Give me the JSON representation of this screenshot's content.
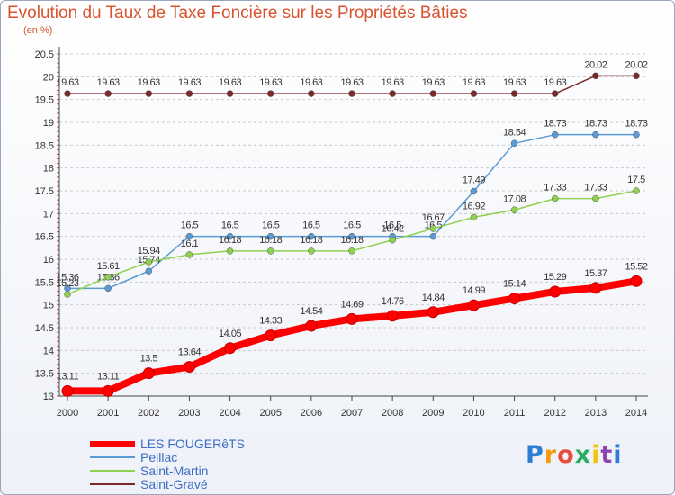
{
  "title": "Evolution du Taux de Taxe Foncière sur les Propriétés Bâties",
  "unit_label": "(en %)",
  "colors": {
    "title": "#d9532f",
    "grid": "#c8c8c8",
    "axis": "#444444",
    "label": "#333333"
  },
  "chart_data": {
    "type": "line",
    "title": "Evolution du Taux de Taxe Foncière sur les Propriétés Bâties",
    "ylabel": "(en %)",
    "xlabel": "",
    "x": [
      "2000",
      "2001",
      "2002",
      "2003",
      "2004",
      "2005",
      "2006",
      "2007",
      "2008",
      "2009",
      "2010",
      "2011",
      "2012",
      "2013",
      "2014"
    ],
    "y_ticks": [
      "13",
      "13.5",
      "14",
      "14.5",
      "15",
      "15.5",
      "16",
      "16.5",
      "17",
      "17.5",
      "18",
      "18.5",
      "19",
      "19.5",
      "20",
      "20.5"
    ],
    "ylim": [
      13,
      20.5
    ],
    "grid": "horizontal",
    "legend_position": "bottom-left",
    "series": [
      {
        "name": "Saint-Gravé",
        "color": "#7b2a2a",
        "values": [
          19.63,
          19.63,
          19.63,
          19.63,
          19.63,
          19.63,
          19.63,
          19.63,
          19.63,
          19.63,
          19.63,
          19.63,
          19.63,
          20.02,
          20.02
        ],
        "labels": [
          "19.63",
          "19.63",
          "19.63",
          "19.63",
          "19.63",
          "19.63",
          "19.63",
          "19.63",
          "19.63",
          "19.63",
          "19.63",
          "19.63",
          "19.63",
          "20.02",
          "20.02"
        ]
      },
      {
        "name": "Peillac",
        "color": "#5a9bd5",
        "values": [
          15.36,
          15.36,
          15.74,
          16.5,
          16.5,
          16.5,
          16.5,
          16.5,
          16.5,
          16.5,
          17.49,
          18.54,
          18.73,
          18.73,
          18.73
        ],
        "labels": [
          "15.36",
          "15.36",
          "15.74",
          "16.5",
          "16.5",
          "16.5",
          "16.5",
          "16.5",
          "16.5",
          "16.5",
          "17.49",
          "18.54",
          "18.73",
          "18.73",
          "18.73"
        ]
      },
      {
        "name": "Saint-Martin",
        "color": "#8fd14f",
        "values": [
          15.23,
          15.61,
          15.94,
          16.1,
          16.18,
          16.18,
          16.18,
          16.18,
          16.42,
          16.67,
          16.92,
          17.08,
          17.33,
          17.33,
          17.5
        ],
        "labels": [
          "15.23",
          "15.61",
          "15.94",
          "16.1",
          "16.18",
          "16.18",
          "16.18",
          "16.18",
          "16.42",
          "16.67",
          "16.92",
          "17.08",
          "17.33",
          "17.33",
          "17.5"
        ]
      },
      {
        "name": "LES FOUGERêTS",
        "color": "#ff0000",
        "values": [
          13.11,
          13.11,
          13.5,
          13.64,
          14.05,
          14.33,
          14.54,
          14.69,
          14.76,
          14.84,
          14.99,
          15.14,
          15.29,
          15.37,
          15.52
        ],
        "labels": [
          "13.11",
          "13.11",
          "13.5",
          "13.64",
          "14.05",
          "14.33",
          "14.54",
          "14.69",
          "14.76",
          "14.84",
          "14.99",
          "15.14",
          "15.29",
          "15.37",
          "15.52"
        ]
      }
    ]
  },
  "legend": {
    "items": [
      {
        "label": "LES FOUGERêTS",
        "color": "#ff0000",
        "thickness": 7
      },
      {
        "label": "Peillac",
        "color": "#5a9bd5",
        "thickness": 2
      },
      {
        "label": "Saint-Martin",
        "color": "#8fd14f",
        "thickness": 2
      },
      {
        "label": "Saint-Gravé",
        "color": "#7b2a2a",
        "thickness": 2
      }
    ]
  },
  "brand": {
    "letters": [
      "P",
      "r",
      "o",
      "x",
      "i",
      "t",
      "i"
    ],
    "colors": [
      "#2d7dd2",
      "#f39c12",
      "#e74c3c",
      "#27ae60",
      "#f1c40f",
      "#8e44ad",
      "#2d7dd2"
    ]
  }
}
